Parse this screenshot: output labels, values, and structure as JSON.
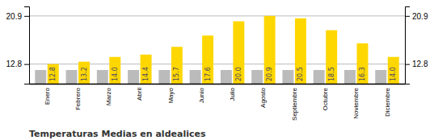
{
  "chart_data": {
    "type": "bar",
    "title": "Temperaturas Medias en aldealices",
    "categories": [
      "Enero",
      "Febrero",
      "Marzo",
      "Abril",
      "Mayo",
      "Junio",
      "Julio",
      "Agosto",
      "Septiembre",
      "Octubre",
      "Noviembre",
      "Diciembre"
    ],
    "series": [
      {
        "color": "#BBBBBB",
        "values": [
          11.8,
          11.8,
          11.8,
          11.8,
          11.8,
          11.8,
          11.8,
          11.8,
          11.8,
          11.8,
          11.8,
          11.8
        ]
      },
      {
        "color": "#FFD700",
        "values": [
          12.8,
          13.2,
          14.0,
          14.4,
          15.7,
          17.6,
          20.0,
          20.9,
          20.5,
          18.5,
          16.3,
          14.0
        ],
        "value_labels": [
          "12.8",
          "13.2",
          "14.0",
          "14.4",
          "15.7",
          "17.6",
          "20.0",
          "20.9",
          "20.5",
          "18.5",
          "16.3",
          "14.0"
        ],
        "data_labels": true
      }
    ],
    "ylim": [
      9.5,
      22.5
    ],
    "yticks": [
      12.8,
      20.9
    ],
    "y2lim": [
      9.5,
      22.5
    ],
    "y2ticks": [
      12.8,
      20.9
    ],
    "grid": true
  }
}
